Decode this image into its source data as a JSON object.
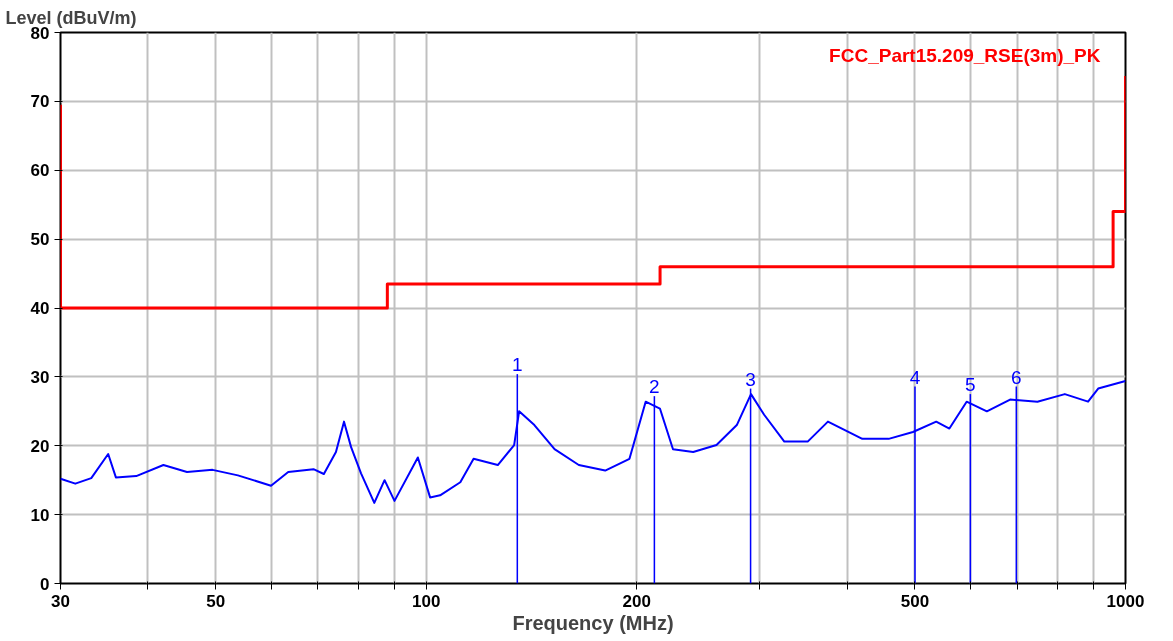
{
  "chart_data": {
    "type": "line",
    "xlabel": "Frequency (MHz)",
    "ylabel": "Level (dBuV/m)",
    "log": "x",
    "grid": true,
    "legend": false,
    "xlim": [
      30,
      1000
    ],
    "ylim": [
      0,
      80
    ],
    "xticks": [
      30,
      {
        "value": 40,
        "label": null
      },
      50,
      {
        "value": 60,
        "label": null
      },
      {
        "value": 70,
        "label": null
      },
      {
        "value": 80,
        "label": null
      },
      {
        "value": 90,
        "label": null
      },
      100,
      200,
      {
        "value": 300,
        "label": null
      },
      {
        "value": 400,
        "label": null
      },
      500,
      {
        "value": 600,
        "label": null
      },
      {
        "value": 700,
        "label": null
      },
      {
        "value": 800,
        "label": null
      },
      {
        "value": 900,
        "label": null
      },
      1000
    ],
    "yticks": [
      0,
      10,
      20,
      30,
      40,
      50,
      60,
      70,
      80
    ],
    "series": [
      {
        "name": "FCC_Part15.209_RSE(3m)_PK",
        "type": "step",
        "color": "#ff0000",
        "x": [
          30,
          30,
          88,
          88,
          216,
          216,
          960,
          960,
          1000,
          1000
        ],
        "values": [
          69.5,
          40,
          40,
          43.5,
          43.5,
          46,
          46,
          54,
          54,
          73.7
        ]
      },
      {
        "color": "#0000ff",
        "x": [
          30,
          31.5,
          33.2,
          35.1,
          36.0,
          38.5,
          42.1,
          45.5,
          49.5,
          53.8,
          60.0,
          63.5,
          69.0,
          71.4,
          74.3,
          76.3,
          78.1,
          80.7,
          84.3,
          87.2,
          90.1,
          97.3,
          101.3,
          104.7,
          111.9,
          116.9,
          126.6,
          133.6,
          135.8,
          142.8,
          152.6,
          165.3,
          180.3,
          195.3,
          206,
          215.9,
          225.4,
          240.9,
          260.1,
          278.1,
          291.4,
          304.3,
          325.2,
          351.2,
          375.4,
          420.4,
          458.5,
          496.7,
          536.2,
          560,
          592.7,
          633.5,
          683.9,
          748.3,
          818.9,
          884,
          914,
          1000
        ],
        "values": [
          15.2,
          14.5,
          15.3,
          18.8,
          15.4,
          15.6,
          17.2,
          16.2,
          16.5,
          15.7,
          14.2,
          16.2,
          16.6,
          15.9,
          19.1,
          23.5,
          19.8,
          16.0,
          11.7,
          15.0,
          12.0,
          18.3,
          12.5,
          12.8,
          14.7,
          18.1,
          17.2,
          20.1,
          25.0,
          23.0,
          19.5,
          17.2,
          16.4,
          18.1,
          26.4,
          25.4,
          19.5,
          19.1,
          20.1,
          23.0,
          27.5,
          24.5,
          20.6,
          20.6,
          23.5,
          21.0,
          21.0,
          22.0,
          23.5,
          22.5,
          26.4,
          25.0,
          26.7,
          26.4,
          27.5,
          26.4,
          28.3,
          29.4
        ]
      },
      {
        "type": "bar",
        "color": "#0000ff",
        "x": [
          135,
          212,
          291,
          500,
          600,
          698
        ],
        "values": [
          30.4,
          27.2,
          28.3,
          28.6,
          27.5,
          28.6
        ]
      }
    ],
    "annotations": [
      {
        "text": "1",
        "x": 135,
        "y": 30.4
      },
      {
        "text": "2",
        "x": 212,
        "y": 27.2
      },
      {
        "text": "3",
        "x": 291,
        "y": 28.3
      },
      {
        "text": "4",
        "x": 500,
        "y": 28.6
      },
      {
        "text": "5",
        "x": 600,
        "y": 27.5
      },
      {
        "text": "6",
        "x": 698,
        "y": 28.6
      }
    ]
  }
}
